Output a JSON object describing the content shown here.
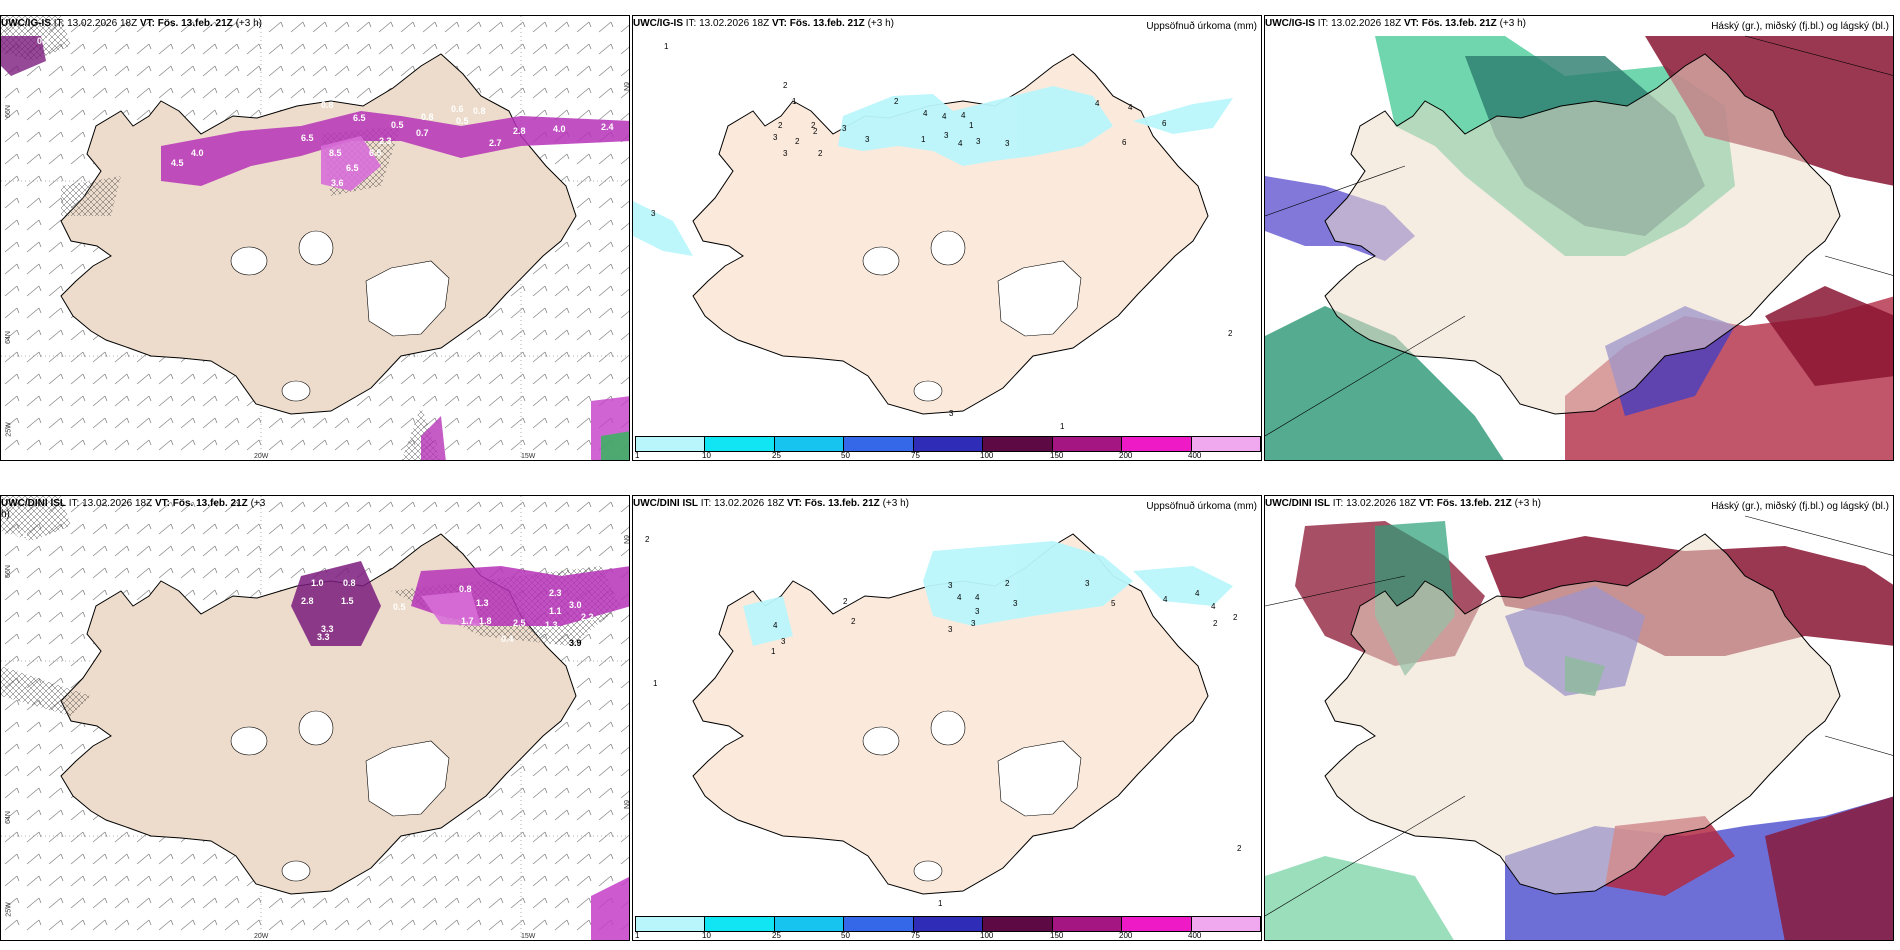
{
  "panels": {
    "tl": {
      "model": "UWC/IG-IS",
      "it": "IT: 13.02.2026 18Z",
      "vt_label": "VT:",
      "vt": "Fös. 13.feb. 21Z",
      "lead": "(+3 h)"
    },
    "tm": {
      "model": "UWC/IG-IS",
      "it": "IT: 13.02.2026 18Z",
      "vt_label": "VT:",
      "vt": "Fös. 13.feb. 21Z",
      "lead": "(+3 h)",
      "right_title": "Uppsöfnuð úrkoma (mm)"
    },
    "tr": {
      "model": "UWC/IG-IS",
      "it": "IT: 13.02.2026 18Z",
      "vt_label": "VT:",
      "vt": "Fös. 13.feb. 21Z",
      "lead": "(+3 h)",
      "right_title": "Háský (gr.), miðský (fj.bl.) og lágský (bl.)"
    },
    "bl": {
      "model": "UWC/DINI ISL",
      "it": "IT: 13.02.2026 18Z",
      "vt_label": "VT:",
      "vt": "Fös. 13.feb. 21Z",
      "lead": "(+3",
      "lead2": "h)"
    },
    "bm": {
      "model": "UWC/DINI ISL",
      "it": "IT: 13.02.2026 18Z",
      "vt_label": "VT:",
      "vt": "Fös. 13.feb. 21Z",
      "lead": "(+3 h)",
      "right_title": "Uppsöfnuð úrkoma (mm)"
    },
    "br": {
      "model": "UWC/DINI ISL",
      "it": "IT: 13.02.2026 18Z",
      "vt_label": "VT:",
      "vt": "Fös. 13.feb. 21Z",
      "lead": "(+3 h)",
      "right_title": "Háský (gr.), miðský (fj.bl.) og lágský (bl.)"
    }
  },
  "axis_labels": {
    "lon_20": "20W",
    "lon_15": "15W",
    "lat_66": "66N",
    "lat_64": "64N",
    "lon_25": "25W",
    "lon_6": "6N"
  },
  "legend": {
    "labels": [
      "1",
      "10",
      "25",
      "50",
      "75",
      "100",
      "150",
      "200",
      "400"
    ],
    "colors": [
      "#b9f6fb",
      "#11e4f2",
      "#17c3ef",
      "#3568e8",
      "#2f2cb8",
      "#5d0a44",
      "#a41682",
      "#ee1ac6",
      "#f0a9ee"
    ]
  },
  "precip_top": [
    "1",
    "2",
    "1",
    "2",
    "2",
    "2",
    "3",
    "3",
    "2",
    "2",
    "4",
    "3",
    "2",
    "1",
    "4",
    "3",
    "4",
    "1",
    "3",
    "4",
    "3",
    "4",
    "6",
    "4",
    "6",
    "3",
    "3",
    "2",
    "3",
    "1"
  ],
  "precip_bottom": [
    "2",
    "1",
    "2",
    "2",
    "4",
    "3",
    "1",
    "3",
    "4",
    "4",
    "3",
    "3",
    "3",
    "3",
    "2",
    "3",
    "5",
    "4",
    "4",
    "4",
    "2",
    "2",
    "2",
    "1"
  ],
  "wind_top_labels": [
    "0.4",
    "4.0",
    "2.4",
    "2.8",
    "2.7",
    "0.8",
    "0.6",
    "0.5",
    "0.8",
    "0.8",
    "8.5",
    "6.5",
    "3.6",
    "6.5",
    "0.7",
    "2.3",
    "0.5",
    "4.5",
    "4.0",
    "6.5",
    "6.5"
  ],
  "wind_bottom_labels": [
    "0.6",
    "1.0",
    "0.8",
    "3.3",
    "2.8",
    "0.8",
    "1.5",
    "0.5",
    "3.0",
    "1.7",
    "1.8",
    "2.5",
    "1.3",
    "0.4",
    "3.9",
    "3.3",
    "1.3",
    "2.2",
    "2.3",
    "1.1"
  ]
}
